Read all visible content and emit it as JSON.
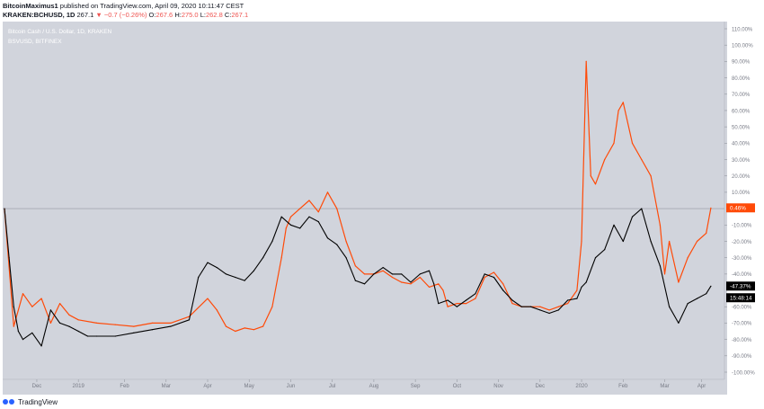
{
  "header": {
    "publisher": "BitcoinMaximus1",
    "published_text": " published on TradingView.com, April 09, 2020 10:11:47 CEST",
    "symbol": "KRAKEN:BCHUSD, 1D",
    "last": "267.1",
    "change": "−0.7 (−0.26%)",
    "o_label": "O:",
    "o": "267.6",
    "h_label": "H:",
    "h": "275.0",
    "l_label": "L:",
    "l": "262.8",
    "c_label": "C:",
    "c": "267.1"
  },
  "legend": {
    "main": "Bitcoin Cash / U.S. Dollar, 1D, KRAKEN",
    "compare": "BSVUSD, BITFINEX"
  },
  "footer": {
    "brand": "TradingView"
  },
  "colors": {
    "bch": "#000000",
    "bsv": "#ff4a08",
    "bg": "#d1d4dc",
    "axis_text": "#b2b5be"
  },
  "chart_data": {
    "type": "line",
    "y_axis": {
      "scale": "percent",
      "range": [
        -100,
        110
      ],
      "ticks": [
        "110.00%",
        "100.00%",
        "90.00%",
        "80.00%",
        "70.00%",
        "60.00%",
        "50.00%",
        "40.00%",
        "30.00%",
        "20.00%",
        "10.00%",
        "-10.00%",
        "-20.00%",
        "-30.00%",
        "-40.00%",
        "-60.00%",
        "-70.00%",
        "-80.00%",
        "-90.00%",
        "-100.00%"
      ],
      "tick_values": [
        110,
        100,
        90,
        80,
        70,
        60,
        50,
        40,
        30,
        20,
        10,
        -10,
        -20,
        -30,
        -40,
        -60,
        -70,
        -80,
        -90,
        -100
      ]
    },
    "x_axis": {
      "ticks": [
        "Dec",
        "2019",
        "Feb",
        "Mar",
        "Apr",
        "May",
        "Jun",
        "Jul",
        "Aug",
        "Sep",
        "Oct",
        "Nov",
        "Dec",
        "2020",
        "Feb",
        "Mar",
        "Apr"
      ],
      "tick_t": [
        3.5,
        8,
        13,
        17.5,
        22,
        26.5,
        31,
        35.5,
        40,
        44.5,
        49,
        53.5,
        58,
        62.5,
        67,
        71.5,
        75.5
      ],
      "range_t": [
        0,
        77
      ]
    },
    "zero_line": 0,
    "badges": [
      {
        "label": "0.46%",
        "value": 0.46,
        "series": "BSVUSD"
      },
      {
        "label": "-47.37%",
        "value": -47.37,
        "series": "BCHUSD"
      },
      {
        "label": "15:48:14",
        "value": -54.5,
        "series": "countdown"
      }
    ],
    "series": [
      {
        "name": "BSVUSD",
        "color": "#ff4a08",
        "t": [
          0,
          1,
          2,
          3,
          4,
          5,
          6,
          7,
          8,
          10,
          12,
          14,
          16,
          18,
          20,
          22,
          23,
          24,
          25,
          26,
          27,
          28,
          29,
          30,
          30.5,
          31,
          32,
          33,
          34,
          35,
          36,
          37,
          38,
          39,
          40,
          41,
          42,
          43,
          44,
          45,
          46,
          47,
          47.5,
          48,
          49,
          50,
          51,
          52,
          53,
          54,
          55,
          56,
          57,
          58,
          59,
          60,
          61,
          62,
          62.5,
          63,
          63.5,
          64,
          65,
          66,
          66.5,
          67,
          68,
          69,
          70,
          71,
          71.5,
          72,
          73,
          74,
          75,
          76,
          76.5
        ],
        "values": [
          0,
          -72,
          -52,
          -60,
          -55,
          -70,
          -58,
          -65,
          -68,
          -70,
          -71,
          -72,
          -70,
          -70,
          -66,
          -55,
          -62,
          -72,
          -75,
          -73,
          -74,
          -72,
          -60,
          -30,
          -12,
          -5,
          0,
          5,
          -2,
          10,
          0,
          -20,
          -35,
          -40,
          -40,
          -38,
          -42,
          -45,
          -46,
          -42,
          -48,
          -46,
          -50,
          -60,
          -58,
          -58,
          -55,
          -42,
          -39,
          -46,
          -58,
          -60,
          -60,
          -60,
          -62,
          -60,
          -58,
          -50,
          -20,
          90,
          20,
          15,
          30,
          40,
          60,
          65,
          40,
          30,
          20,
          -10,
          -40,
          -20,
          -45,
          -30,
          -20,
          -15,
          0.46
        ]
      },
      {
        "name": "BCHUSD",
        "color": "#000000",
        "t": [
          0,
          0.5,
          1,
          1.5,
          2,
          3,
          4,
          5,
          6,
          7,
          8,
          9,
          10,
          12,
          14,
          16,
          18,
          20,
          21,
          22,
          23,
          24,
          25,
          26,
          27,
          28,
          29,
          30,
          31,
          32,
          33,
          34,
          35,
          36,
          37,
          38,
          39,
          40,
          41,
          42,
          43,
          44,
          45,
          46,
          46.5,
          47,
          48,
          49,
          50,
          51,
          52,
          53,
          54,
          55,
          56,
          57,
          58,
          59,
          60,
          61,
          62,
          62.5,
          63,
          64,
          65,
          66,
          67,
          68,
          69,
          70,
          71,
          72,
          73,
          74,
          75,
          76,
          76.5
        ],
        "values": [
          0,
          -30,
          -60,
          -75,
          -80,
          -76,
          -84,
          -62,
          -70,
          -72,
          -75,
          -78,
          -78,
          -78,
          -76,
          -74,
          -72,
          -68,
          -42,
          -33,
          -36,
          -40,
          -42,
          -44,
          -38,
          -30,
          -20,
          -5,
          -10,
          -12,
          -5,
          -8,
          -18,
          -22,
          -30,
          -44,
          -46,
          -40,
          -36,
          -40,
          -40,
          -45,
          -40,
          -38,
          -46,
          -58,
          -56,
          -60,
          -56,
          -52,
          -40,
          -42,
          -50,
          -56,
          -60,
          -60,
          -62,
          -64,
          -62,
          -56,
          -55,
          -48,
          -45,
          -30,
          -25,
          -10,
          -20,
          -5,
          0,
          -20,
          -35,
          -60,
          -70,
          -58,
          -55,
          -52,
          -47.37
        ]
      }
    ]
  }
}
